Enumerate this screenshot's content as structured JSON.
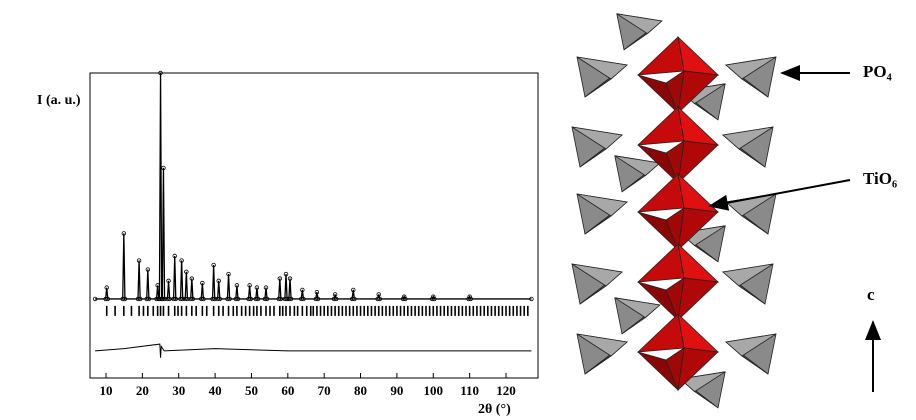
{
  "chart_data": {
    "type": "line",
    "x_label": "2θ (°)",
    "y_label": "I (a. u.)",
    "xlim": [
      5.6,
      128.8
    ],
    "ylim": [
      -35,
      100
    ],
    "xticks": [
      10,
      20,
      30,
      40,
      50,
      60,
      70,
      80,
      90,
      100,
      110,
      120
    ],
    "color": "#000000",
    "x": [
      7,
      9.9,
      10.2,
      10.5,
      14.6,
      14.9,
      15.2,
      18.8,
      19.1,
      19.4,
      21.2,
      21.5,
      21.8,
      23.9,
      24.2,
      24.5,
      24.7,
      25.0,
      25.3,
      25.5,
      25.8,
      26.1,
      26.9,
      27.2,
      27.5,
      28.6,
      28.9,
      29.2,
      30.5,
      30.8,
      31.1,
      31.8,
      32.1,
      32.4,
      33.3,
      33.6,
      33.9,
      36.2,
      36.5,
      36.8,
      39.3,
      39.6,
      39.9,
      40.7,
      41.0,
      41.3,
      43.4,
      43.7,
      44.0,
      45.7,
      46.0,
      46.3,
      49.2,
      49.5,
      49.8,
      51.2,
      51.5,
      51.8,
      53.7,
      54.0,
      54.3,
      57.5,
      57.8,
      58.1,
      59.2,
      59.5,
      59.8,
      60.3,
      60.6,
      60.9,
      63.7,
      64.0,
      64.3,
      67.7,
      68.0,
      68.3,
      72.7,
      73.0,
      73.3,
      77.7,
      78.0,
      78.3,
      84.7,
      85.0,
      85.3,
      91.7,
      92.0,
      92.3,
      99.7,
      100.0,
      100.3,
      109.7,
      110.0,
      110.3,
      127
    ],
    "values": [
      0,
      0,
      5,
      0,
      0,
      29,
      0,
      0,
      17,
      0,
      0,
      13,
      0,
      0,
      6,
      0,
      0,
      100,
      0,
      0,
      58,
      0,
      0,
      8,
      0,
      0,
      19,
      0,
      0,
      17,
      0,
      0,
      12,
      0,
      0,
      9,
      0,
      0,
      7,
      0,
      0,
      15,
      0,
      0,
      8,
      0,
      0,
      11,
      0,
      0,
      6,
      0,
      0,
      6,
      0,
      0,
      5,
      0,
      0,
      5,
      0,
      0,
      9,
      0,
      0,
      11,
      0,
      0,
      9,
      0,
      0,
      4,
      0,
      0,
      3,
      0,
      0,
      2,
      0,
      0,
      4,
      0,
      0,
      2,
      0,
      0,
      1,
      0,
      0,
      1,
      0,
      0,
      1,
      0,
      0
    ],
    "bragg_positions": [
      10.2,
      12.5,
      14.9,
      17,
      19.1,
      20.3,
      21.5,
      23,
      24.2,
      25,
      25.8,
      27.2,
      28.9,
      29.8,
      30.8,
      32.1,
      33.6,
      34.8,
      36.5,
      37.7,
      39.6,
      41,
      42.2,
      43.7,
      45,
      46,
      47.3,
      48.4,
      49.5,
      50.6,
      51.5,
      52.6,
      54,
      55.1,
      56.2,
      57.8,
      58.6,
      59.5,
      60.6,
      61.8,
      62.7,
      64,
      65.2,
      66.3,
      67,
      68,
      69,
      70,
      71,
      72,
      73,
      74,
      75,
      76,
      77,
      78,
      79,
      80,
      81,
      82,
      83,
      84,
      85,
      86,
      87,
      88,
      89,
      90,
      91,
      92,
      93,
      94,
      95,
      96,
      97,
      98,
      99,
      100,
      101,
      102,
      103,
      104,
      105,
      106,
      107,
      108,
      109,
      110,
      111,
      112,
      113,
      114,
      115,
      116,
      117,
      118,
      119,
      120,
      121,
      122,
      123,
      124,
      125,
      126
    ],
    "bragg_level": -5.3,
    "difference": {
      "x": [
        7,
        15,
        24.8,
        25,
        25.2,
        26,
        40,
        60,
        80,
        100,
        127
      ],
      "values": [
        -23,
        -22,
        -20,
        -26,
        -21,
        -23,
        -22,
        -23,
        -23,
        -23,
        -23
      ]
    }
  },
  "structure": {
    "labels": [
      "PO₄",
      "TiO₆",
      "c"
    ]
  }
}
